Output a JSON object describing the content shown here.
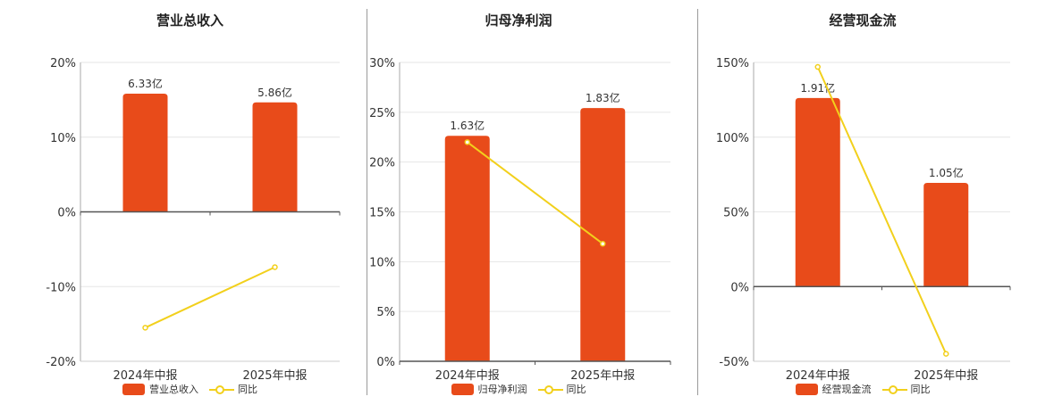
{
  "colors": {
    "bar": "#E84B1A",
    "line": "#F2D01C",
    "axis": "#555555",
    "grid": "#e6e6e6"
  },
  "legend_line_label": "同比",
  "chart_data": [
    {
      "type": "bar",
      "title": "营业总收入",
      "categories": [
        "2024年中报",
        "2025年中报"
      ],
      "series": [
        {
          "name": "营业总收入",
          "type": "bar",
          "values": [
            6.33,
            5.86
          ],
          "labels": [
            "6.33亿",
            "5.86亿"
          ]
        },
        {
          "name": "同比",
          "type": "line",
          "values": [
            -15.5,
            -7.4
          ]
        }
      ],
      "y_ticks": [
        "20%",
        "10%",
        "0%",
        "-10%",
        "-20%"
      ],
      "ylim": [
        -20,
        20
      ],
      "bar_scale_max": 8.0,
      "grid": true
    },
    {
      "type": "bar",
      "title": "归母净利润",
      "categories": [
        "2024年中报",
        "2025年中报"
      ],
      "series": [
        {
          "name": "归母净利润",
          "type": "bar",
          "values": [
            1.63,
            1.83
          ],
          "labels": [
            "1.63亿",
            "1.83亿"
          ]
        },
        {
          "name": "同比",
          "type": "line",
          "values": [
            22.0,
            11.8
          ]
        }
      ],
      "y_ticks": [
        "30%",
        "25%",
        "20%",
        "15%",
        "10%",
        "5%",
        "0%"
      ],
      "ylim": [
        0,
        30
      ],
      "bar_scale_max": 2.16,
      "grid": true
    },
    {
      "type": "bar",
      "title": "经营现金流",
      "categories": [
        "2024年中报",
        "2025年中报"
      ],
      "series": [
        {
          "name": "经营现金流",
          "type": "bar",
          "values": [
            1.91,
            1.05
          ],
          "labels": [
            "1.91亿",
            "1.05亿"
          ]
        },
        {
          "name": "同比",
          "type": "line",
          "values": [
            147,
            -45
          ]
        }
      ],
      "y_ticks": [
        "150%",
        "100%",
        "50%",
        "0%",
        "-50%"
      ],
      "ylim": [
        -50,
        150
      ],
      "bar_scale_max": 2.27,
      "grid": true
    }
  ]
}
